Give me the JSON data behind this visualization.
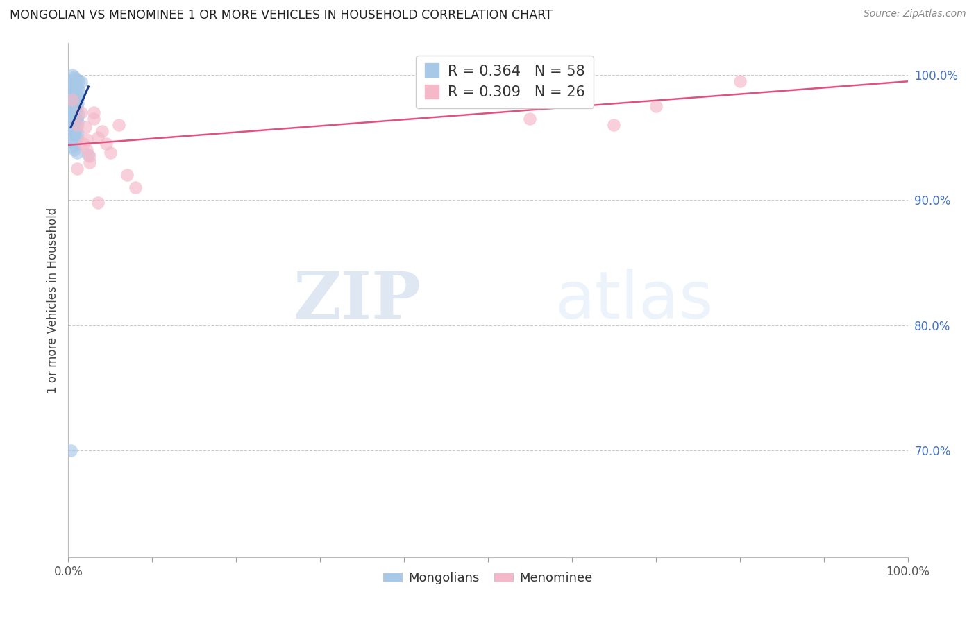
{
  "title": "MONGOLIAN VS MENOMINEE 1 OR MORE VEHICLES IN HOUSEHOLD CORRELATION CHART",
  "source": "Source: ZipAtlas.com",
  "ylabel": "1 or more Vehicles in Household",
  "xlim": [
    0.0,
    1.0
  ],
  "ylim": [
    0.615,
    1.025
  ],
  "y_ticks": [
    0.7,
    0.8,
    0.9,
    1.0
  ],
  "y_tick_labels": [
    "70.0%",
    "80.0%",
    "90.0%",
    "100.0%"
  ],
  "legend_r1": "R = 0.364",
  "legend_n1": "N = 58",
  "legend_r2": "R = 0.309",
  "legend_n2": "N = 26",
  "mongolian_color": "#a8c8e8",
  "menominee_color": "#f4b8c8",
  "trendline_mongolian_color": "#1a3a8a",
  "trendline_menominee_color": "#e05080",
  "watermark_zip": "ZIP",
  "watermark_atlas": "atlas",
  "mongolian_x": [
    0.005,
    0.007,
    0.008,
    0.01,
    0.012,
    0.015,
    0.003,
    0.006,
    0.004,
    0.009,
    0.011,
    0.008,
    0.013,
    0.007,
    0.005,
    0.01,
    0.006,
    0.012,
    0.008,
    0.009,
    0.004,
    0.007,
    0.011,
    0.006,
    0.005,
    0.008,
    0.01,
    0.009,
    0.007,
    0.006,
    0.005,
    0.012,
    0.008,
    0.004,
    0.01,
    0.007,
    0.009,
    0.011,
    0.006,
    0.008,
    0.005,
    0.01,
    0.007,
    0.009,
    0.006,
    0.008,
    0.011,
    0.005,
    0.007,
    0.01,
    0.006,
    0.009,
    0.008,
    0.005,
    0.007,
    0.01,
    0.003,
    0.024
  ],
  "mongolian_y": [
    1.0,
    0.998,
    0.997,
    0.996,
    0.995,
    0.994,
    0.993,
    0.992,
    0.991,
    0.99,
    0.989,
    0.988,
    0.987,
    0.986,
    0.985,
    0.984,
    0.983,
    0.982,
    0.981,
    0.98,
    0.979,
    0.978,
    0.977,
    0.976,
    0.975,
    0.974,
    0.973,
    0.972,
    0.971,
    0.97,
    0.969,
    0.968,
    0.967,
    0.966,
    0.965,
    0.964,
    0.963,
    0.962,
    0.961,
    0.96,
    0.959,
    0.958,
    0.957,
    0.956,
    0.955,
    0.954,
    0.953,
    0.952,
    0.951,
    0.95,
    0.948,
    0.946,
    0.944,
    0.942,
    0.94,
    0.938,
    0.7,
    0.936
  ],
  "menominee_x": [
    0.005,
    0.01,
    0.015,
    0.018,
    0.02,
    0.022,
    0.025,
    0.03,
    0.035,
    0.04,
    0.045,
    0.05,
    0.06,
    0.07,
    0.08,
    0.022,
    0.03,
    0.01,
    0.035,
    0.025,
    0.5,
    0.55,
    0.6,
    0.65,
    0.7,
    0.8
  ],
  "menominee_y": [
    0.98,
    0.96,
    0.97,
    0.945,
    0.958,
    0.94,
    0.935,
    0.965,
    0.95,
    0.955,
    0.945,
    0.938,
    0.96,
    0.92,
    0.91,
    0.948,
    0.97,
    0.925,
    0.898,
    0.93,
    0.99,
    0.965,
    0.98,
    0.96,
    0.975,
    0.995
  ]
}
